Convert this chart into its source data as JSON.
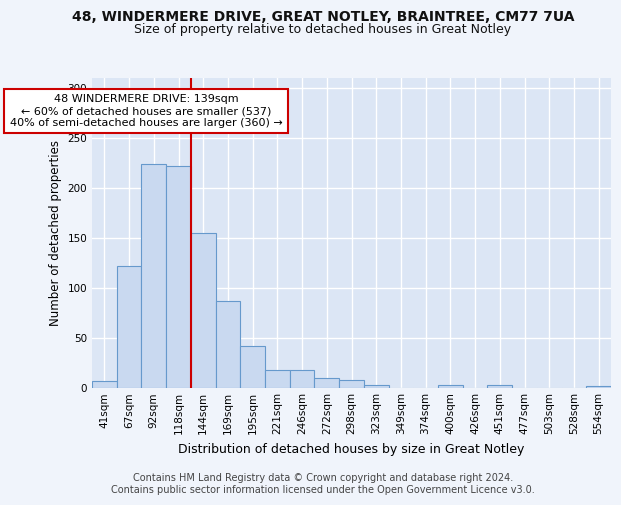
{
  "title1": "48, WINDERMERE DRIVE, GREAT NOTLEY, BRAINTREE, CM77 7UA",
  "title2": "Size of property relative to detached houses in Great Notley",
  "xlabel": "Distribution of detached houses by size in Great Notley",
  "ylabel": "Number of detached properties",
  "categories": [
    "41sqm",
    "67sqm",
    "92sqm",
    "118sqm",
    "144sqm",
    "169sqm",
    "195sqm",
    "221sqm",
    "246sqm",
    "272sqm",
    "298sqm",
    "323sqm",
    "349sqm",
    "374sqm",
    "400sqm",
    "426sqm",
    "451sqm",
    "477sqm",
    "503sqm",
    "528sqm",
    "554sqm"
  ],
  "values": [
    7,
    122,
    224,
    222,
    155,
    87,
    42,
    18,
    18,
    10,
    8,
    3,
    0,
    0,
    3,
    0,
    3,
    0,
    0,
    0,
    2
  ],
  "bar_color": "#c9d9f0",
  "bar_edge_color": "#6699cc",
  "property_line_color": "#cc0000",
  "annotation_text": "48 WINDERMERE DRIVE: 139sqm\n← 60% of detached houses are smaller (537)\n40% of semi-detached houses are larger (360) →",
  "annotation_box_color": "#ffffff",
  "annotation_box_edge_color": "#cc0000",
  "footer_text": "Contains HM Land Registry data © Crown copyright and database right 2024.\nContains public sector information licensed under the Open Government Licence v3.0.",
  "ylim": [
    0,
    310
  ],
  "yticks": [
    0,
    50,
    100,
    150,
    200,
    250,
    300
  ],
  "background_color": "#dce6f5",
  "grid_color": "#ffffff",
  "title1_fontsize": 10,
  "title2_fontsize": 9,
  "xlabel_fontsize": 9,
  "ylabel_fontsize": 8.5,
  "tick_fontsize": 7.5,
  "annotation_fontsize": 8,
  "footer_fontsize": 7
}
